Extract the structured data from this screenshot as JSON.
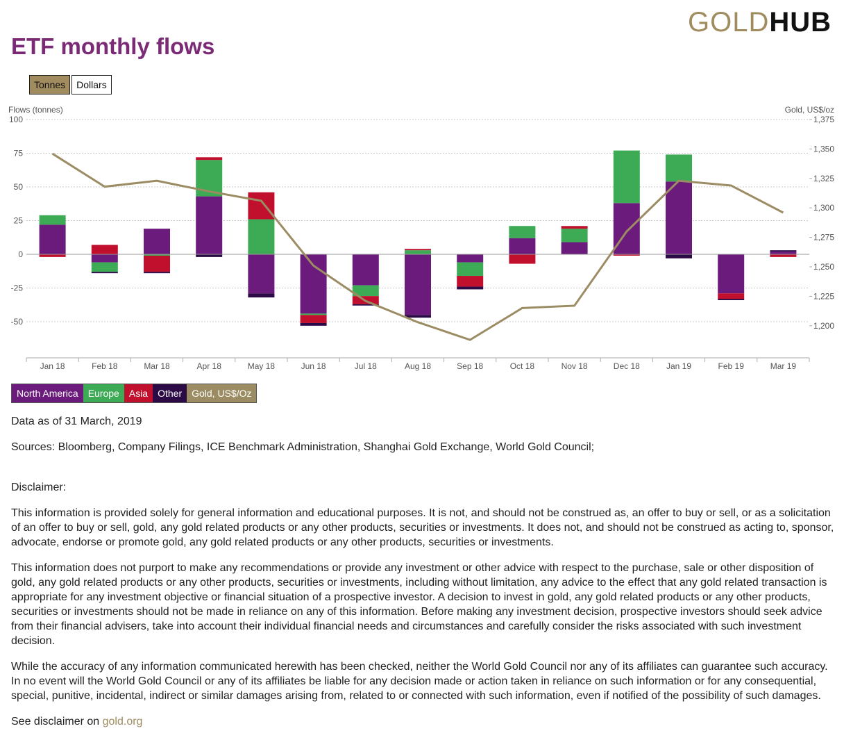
{
  "header": {
    "logo_gold": "GOLD",
    "logo_hub": "HUB",
    "title": "ETF monthly flows"
  },
  "toggle": {
    "tonnes": "Tonnes",
    "dollars": "Dollars",
    "selected": "Tonnes"
  },
  "colors": {
    "north_america": "#6a1b7b",
    "europe": "#3dab55",
    "asia": "#c0102e",
    "other": "#2c0a46",
    "gold": "#9c8c63"
  },
  "chart_data": {
    "type": "bar",
    "stacked": true,
    "y_left_label": "Flows (tonnes)",
    "y_right_label": "Gold, US$/oz",
    "y_left_ticks": [
      "100",
      "75",
      "50",
      "25",
      "0",
      "-25",
      "-50"
    ],
    "y_right_ticks": [
      "1,375",
      "1,350",
      "1,325",
      "1,300",
      "1,275",
      "1,250",
      "1,225",
      "1,200"
    ],
    "ylim_left": [
      -75,
      100
    ],
    "ylim_right": [
      1175,
      1375
    ],
    "categories": [
      "Jan 18",
      "Feb 18",
      "Mar 18",
      "Apr 18",
      "May 18",
      "Jun 18",
      "Jul 18",
      "Aug 18",
      "Sep 18",
      "Oct 18",
      "Nov 18",
      "Dec 18",
      "Jan 19",
      "Feb 19",
      "Mar 19"
    ],
    "series": [
      {
        "name": "North America",
        "key": "north_america",
        "values": [
          22,
          -6,
          19,
          43,
          -29,
          -44,
          -23,
          -45,
          -6,
          12,
          9,
          38,
          54,
          -29,
          2
        ]
      },
      {
        "name": "Europe",
        "key": "europe",
        "values": [
          7,
          -7,
          -1,
          27,
          26,
          -1,
          -8,
          3,
          -10,
          9,
          10,
          39,
          20,
          0,
          0
        ]
      },
      {
        "name": "Asia",
        "key": "asia",
        "values": [
          -2,
          7,
          -12,
          2,
          20,
          -6,
          -6,
          1,
          -8,
          -7,
          2,
          -1,
          0,
          -4,
          -2
        ]
      },
      {
        "name": "Other",
        "key": "other",
        "values": [
          0,
          -1,
          -1,
          -2,
          -3,
          -2,
          -1,
          -2,
          -2,
          0,
          0,
          0,
          -3,
          -1,
          1
        ]
      }
    ],
    "line": {
      "name": "Gold, US$/Oz",
      "values": [
        1346,
        1318,
        1323,
        1314,
        1306,
        1251,
        1221,
        1203,
        1188,
        1215,
        1217,
        1280,
        1323,
        1319,
        1296
      ]
    }
  },
  "legend": [
    "North America",
    "Europe",
    "Asia",
    "Other",
    "Gold, US$/Oz"
  ],
  "footer": {
    "data_as_of": "Data as of 31 March, 2019",
    "sources": "Sources: Bloomberg, Company Filings, ICE Benchmark Administration, Shanghai Gold Exchange, World Gold Council;",
    "disclaimer_heading": "Disclaimer:",
    "para1": "This information is provided solely for general information and educational purposes. It is not, and should not be construed as, an offer to buy or sell, or as a solicitation of an offer to buy or sell, gold, any gold related products or any other products, securities or investments. It does not, and should not be construed as acting to, sponsor, advocate, endorse or promote gold, any gold related products or any other products, securities or investments.",
    "para2": "This information does not purport to make any recommendations or provide any investment or other advice with respect to the purchase, sale or other disposition of gold, any gold related products or any other products, securities or investments, including without limitation, any advice to the effect that any gold related transaction is appropriate for any investment objective or financial situation of a prospective investor. A decision to invest in gold, any gold related products or any other products, securities or investments should not be made in reliance on any of this information. Before making any investment decision, prospective investors should seek advice from their financial advisers, take into account their individual financial needs and circumstances and carefully consider the risks associated with such investment decision.",
    "para3": "While the accuracy of any information communicated herewith has been checked, neither the World Gold Council nor any of its affiliates can guarantee such accuracy. In no event will the World Gold Council or any of its affiliates be liable for any decision made or action taken in reliance on such information or for any consequential, special, punitive, incidental, indirect or similar damages arising from, related to or connected with such information, even if notified of the possibility of such damages.",
    "see_disclaimer": "See disclaimer on",
    "link": "gold.org"
  }
}
